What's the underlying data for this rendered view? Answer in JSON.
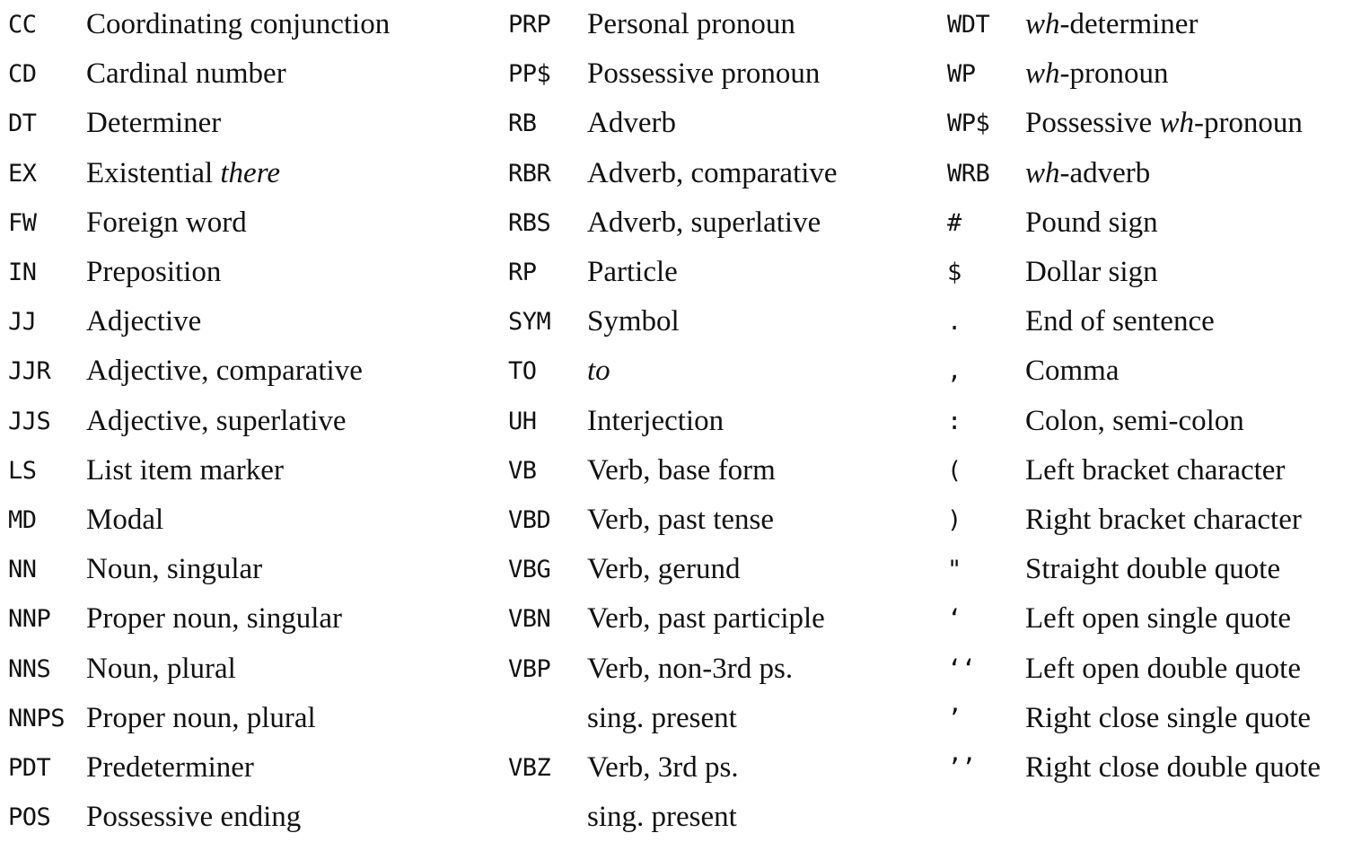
{
  "columns": [
    {
      "entries": [
        {
          "tag": "CC",
          "parts": [
            {
              "t": "Coordinating conjunction"
            }
          ]
        },
        {
          "tag": "CD",
          "parts": [
            {
              "t": "Cardinal number"
            }
          ]
        },
        {
          "tag": "DT",
          "parts": [
            {
              "t": "Determiner"
            }
          ]
        },
        {
          "tag": "EX",
          "parts": [
            {
              "t": "Existential "
            },
            {
              "t": "there",
              "i": true
            }
          ]
        },
        {
          "tag": "FW",
          "parts": [
            {
              "t": "Foreign word"
            }
          ]
        },
        {
          "tag": "IN",
          "parts": [
            {
              "t": "Preposition"
            }
          ]
        },
        {
          "tag": "JJ",
          "parts": [
            {
              "t": "Adjective"
            }
          ]
        },
        {
          "tag": "JJR",
          "parts": [
            {
              "t": "Adjective, comparative"
            }
          ]
        },
        {
          "tag": "JJS",
          "parts": [
            {
              "t": "Adjective, superlative"
            }
          ]
        },
        {
          "tag": "LS",
          "parts": [
            {
              "t": "List item marker"
            }
          ]
        },
        {
          "tag": "MD",
          "parts": [
            {
              "t": "Modal"
            }
          ]
        },
        {
          "tag": "NN",
          "parts": [
            {
              "t": "Noun, singular"
            }
          ]
        },
        {
          "tag": "NNP",
          "parts": [
            {
              "t": "Proper noun, singular"
            }
          ]
        },
        {
          "tag": "NNS",
          "parts": [
            {
              "t": "Noun, plural"
            }
          ]
        },
        {
          "tag": "NNPS",
          "parts": [
            {
              "t": "Proper noun, plural"
            }
          ]
        },
        {
          "tag": "PDT",
          "parts": [
            {
              "t": "Predeterminer"
            }
          ]
        },
        {
          "tag": "POS",
          "parts": [
            {
              "t": "Possessive ending"
            }
          ]
        }
      ]
    },
    {
      "entries": [
        {
          "tag": "PRP",
          "parts": [
            {
              "t": "Personal pronoun"
            }
          ]
        },
        {
          "tag": "PP$",
          "parts": [
            {
              "t": "Possessive pronoun"
            }
          ]
        },
        {
          "tag": "RB",
          "parts": [
            {
              "t": "Adverb"
            }
          ]
        },
        {
          "tag": "RBR",
          "parts": [
            {
              "t": "Adverb, comparative"
            }
          ]
        },
        {
          "tag": "RBS",
          "parts": [
            {
              "t": "Adverb, superlative"
            }
          ]
        },
        {
          "tag": "RP",
          "parts": [
            {
              "t": "Particle"
            }
          ]
        },
        {
          "tag": "SYM",
          "parts": [
            {
              "t": "Symbol"
            }
          ]
        },
        {
          "tag": "TO",
          "parts": [
            {
              "t": "to",
              "i": true
            }
          ]
        },
        {
          "tag": "UH",
          "parts": [
            {
              "t": "Interjection"
            }
          ]
        },
        {
          "tag": "VB",
          "parts": [
            {
              "t": "Verb, base form"
            }
          ]
        },
        {
          "tag": "VBD",
          "parts": [
            {
              "t": "Verb, past tense"
            }
          ]
        },
        {
          "tag": "VBG",
          "parts": [
            {
              "t": "Verb, gerund"
            }
          ]
        },
        {
          "tag": "VBN",
          "parts": [
            {
              "t": "Verb, past participle"
            }
          ]
        },
        {
          "tag": "VBP",
          "parts": [
            {
              "t": "Verb, non-3rd ps."
            }
          ]
        },
        {
          "tag": "",
          "parts": [
            {
              "t": "sing. present"
            }
          ]
        },
        {
          "tag": "VBZ",
          "parts": [
            {
              "t": "Verb, 3rd ps."
            }
          ]
        },
        {
          "tag": "",
          "parts": [
            {
              "t": "sing. present"
            }
          ]
        }
      ]
    },
    {
      "entries": [
        {
          "tag": "WDT",
          "parts": [
            {
              "t": "wh",
              "i": true
            },
            {
              "t": "-determiner"
            }
          ]
        },
        {
          "tag": "WP",
          "parts": [
            {
              "t": "wh",
              "i": true
            },
            {
              "t": "-pronoun"
            }
          ]
        },
        {
          "tag": "WP$",
          "parts": [
            {
              "t": "Possessive "
            },
            {
              "t": "wh",
              "i": true
            },
            {
              "t": "-pronoun"
            }
          ]
        },
        {
          "tag": "WRB",
          "parts": [
            {
              "t": "wh",
              "i": true
            },
            {
              "t": "-adverb"
            }
          ]
        },
        {
          "tag": "#",
          "parts": [
            {
              "t": "Pound sign"
            }
          ]
        },
        {
          "tag": "$",
          "parts": [
            {
              "t": "Dollar sign"
            }
          ]
        },
        {
          "tag": ".",
          "parts": [
            {
              "t": "End of sentence"
            }
          ]
        },
        {
          "tag": ",",
          "parts": [
            {
              "t": "Comma"
            }
          ]
        },
        {
          "tag": ":",
          "parts": [
            {
              "t": "Colon, semi-colon"
            }
          ]
        },
        {
          "tag": "(",
          "parts": [
            {
              "t": "Left bracket character"
            }
          ]
        },
        {
          "tag": ")",
          "parts": [
            {
              "t": "Right bracket character"
            }
          ]
        },
        {
          "tag": "\"",
          "parts": [
            {
              "t": "Straight double quote"
            }
          ]
        },
        {
          "tag": "‘",
          "parts": [
            {
              "t": "Left open single quote"
            }
          ]
        },
        {
          "tag": "‘‘",
          "parts": [
            {
              "t": "Left open double quote"
            }
          ]
        },
        {
          "tag": "’",
          "parts": [
            {
              "t": "Right close single quote"
            }
          ]
        },
        {
          "tag": "’’",
          "parts": [
            {
              "t": "Right close double quote"
            }
          ]
        }
      ]
    }
  ]
}
